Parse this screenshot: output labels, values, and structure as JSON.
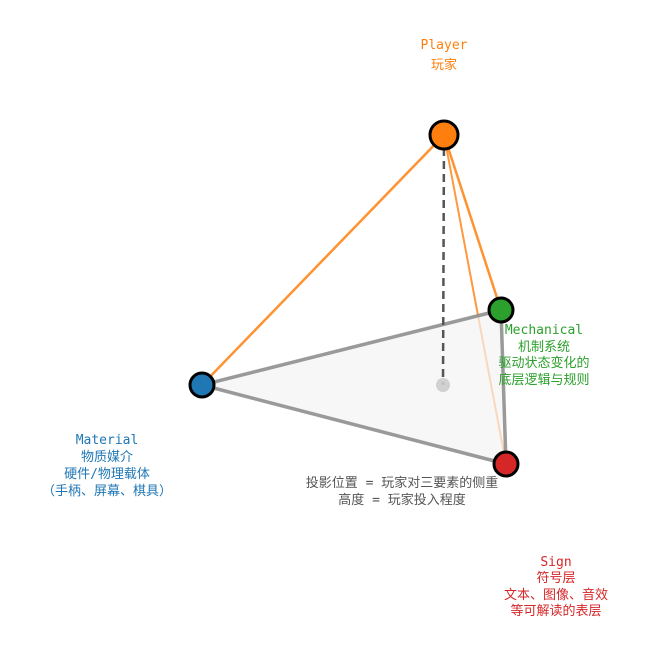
{
  "colors": {
    "player": "#ff7f0e",
    "mechanical": "#2ca02c",
    "material": "#1f77b4",
    "sign": "#d62728",
    "edge": "#888888",
    "projection": "#cccccc"
  },
  "player": {
    "lines": [
      "Player",
      "玩家"
    ]
  },
  "mechanical": {
    "lines": [
      "Mechanical",
      "机制系统",
      "驱动状态变化的",
      "底层逻辑与规则"
    ]
  },
  "material": {
    "lines": [
      "Material",
      "物质媒介",
      "硬件/物理载体",
      "（手柄、屏幕、棋具）"
    ]
  },
  "sign": {
    "lines": [
      "Sign",
      "符号层",
      "文本、图像、音效",
      "等可解读的表层"
    ]
  },
  "caption": {
    "lines": [
      "投影位置 = 玩家对三要素的侧重",
      "高度 = 玩家投入程度"
    ]
  }
}
